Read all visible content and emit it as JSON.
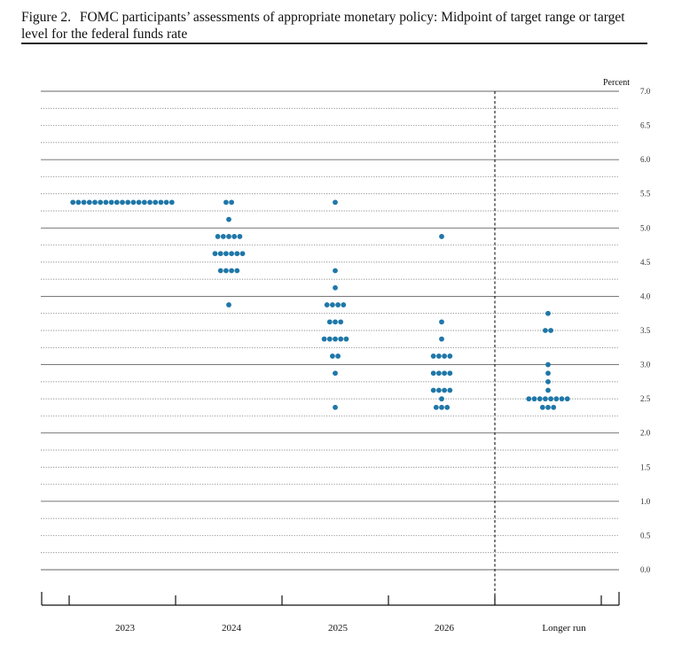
{
  "caption": {
    "figure_label": "Figure 2.",
    "text": "FOMC participants’ assessments of appropriate monetary policy: Midpoint of target range or target level for the federal funds rate"
  },
  "chart_data": {
    "type": "scatter",
    "title": "FOMC participants’ assessments of appropriate monetary policy: Midpoint of target range or target level for the federal funds rate",
    "ylabel": "Percent",
    "ylim": [
      0,
      7
    ],
    "yticks": [
      {
        "value": 0,
        "label": "0.0"
      },
      {
        "value": 0.5,
        "label": "0.5"
      },
      {
        "value": 1,
        "label": "1.0"
      },
      {
        "value": 1.5,
        "label": "1.5"
      },
      {
        "value": 2,
        "label": "2.0"
      },
      {
        "value": 2.5,
        "label": "2.5"
      },
      {
        "value": 3,
        "label": "3.0"
      },
      {
        "value": 3.5,
        "label": "3.5"
      },
      {
        "value": 4,
        "label": "4.0"
      },
      {
        "value": 4.5,
        "label": "4.5"
      },
      {
        "value": 5,
        "label": "5.0"
      },
      {
        "value": 5.5,
        "label": "5.5"
      },
      {
        "value": 6,
        "label": "6.0"
      },
      {
        "value": 6.5,
        "label": "6.5"
      },
      {
        "value": 7,
        "label": "7.0"
      }
    ],
    "grid_step": 0.25,
    "grid_solid_every": 1.0,
    "colors": {
      "dot": "#1f77a8",
      "grid": "#666666",
      "axis": "#111111"
    },
    "categories": [
      {
        "label": "2023",
        "points": [
          {
            "y": 5.375,
            "count": 19
          }
        ]
      },
      {
        "label": "2024",
        "points": [
          {
            "y": 5.375,
            "count": 2
          },
          {
            "y": 5.125,
            "count": 1
          },
          {
            "y": 4.875,
            "count": 5
          },
          {
            "y": 4.625,
            "count": 6
          },
          {
            "y": 4.375,
            "count": 4
          },
          {
            "y": 3.875,
            "count": 1
          }
        ]
      },
      {
        "label": "2025",
        "points": [
          {
            "y": 5.375,
            "count": 1
          },
          {
            "y": 4.375,
            "count": 1
          },
          {
            "y": 4.125,
            "count": 1
          },
          {
            "y": 3.875,
            "count": 4
          },
          {
            "y": 3.625,
            "count": 3
          },
          {
            "y": 3.375,
            "count": 5
          },
          {
            "y": 3.125,
            "count": 2
          },
          {
            "y": 2.875,
            "count": 1
          },
          {
            "y": 2.375,
            "count": 1
          }
        ]
      },
      {
        "label": "2026",
        "points": [
          {
            "y": 4.875,
            "count": 1
          },
          {
            "y": 3.625,
            "count": 1
          },
          {
            "y": 3.375,
            "count": 1
          },
          {
            "y": 3.125,
            "count": 4
          },
          {
            "y": 2.875,
            "count": 4
          },
          {
            "y": 2.625,
            "count": 4
          },
          {
            "y": 2.5,
            "count": 1
          },
          {
            "y": 2.375,
            "count": 3
          }
        ]
      },
      {
        "label": "Longer run",
        "points": [
          {
            "y": 3.75,
            "count": 1
          },
          {
            "y": 3.5,
            "count": 2
          },
          {
            "y": 3.0,
            "count": 1
          },
          {
            "y": 2.875,
            "count": 1
          },
          {
            "y": 2.75,
            "count": 1
          },
          {
            "y": 2.625,
            "count": 1
          },
          {
            "y": 2.5,
            "count": 8
          },
          {
            "y": 2.375,
            "count": 3
          }
        ]
      }
    ],
    "longer_run_separator": true,
    "legend": "none"
  }
}
